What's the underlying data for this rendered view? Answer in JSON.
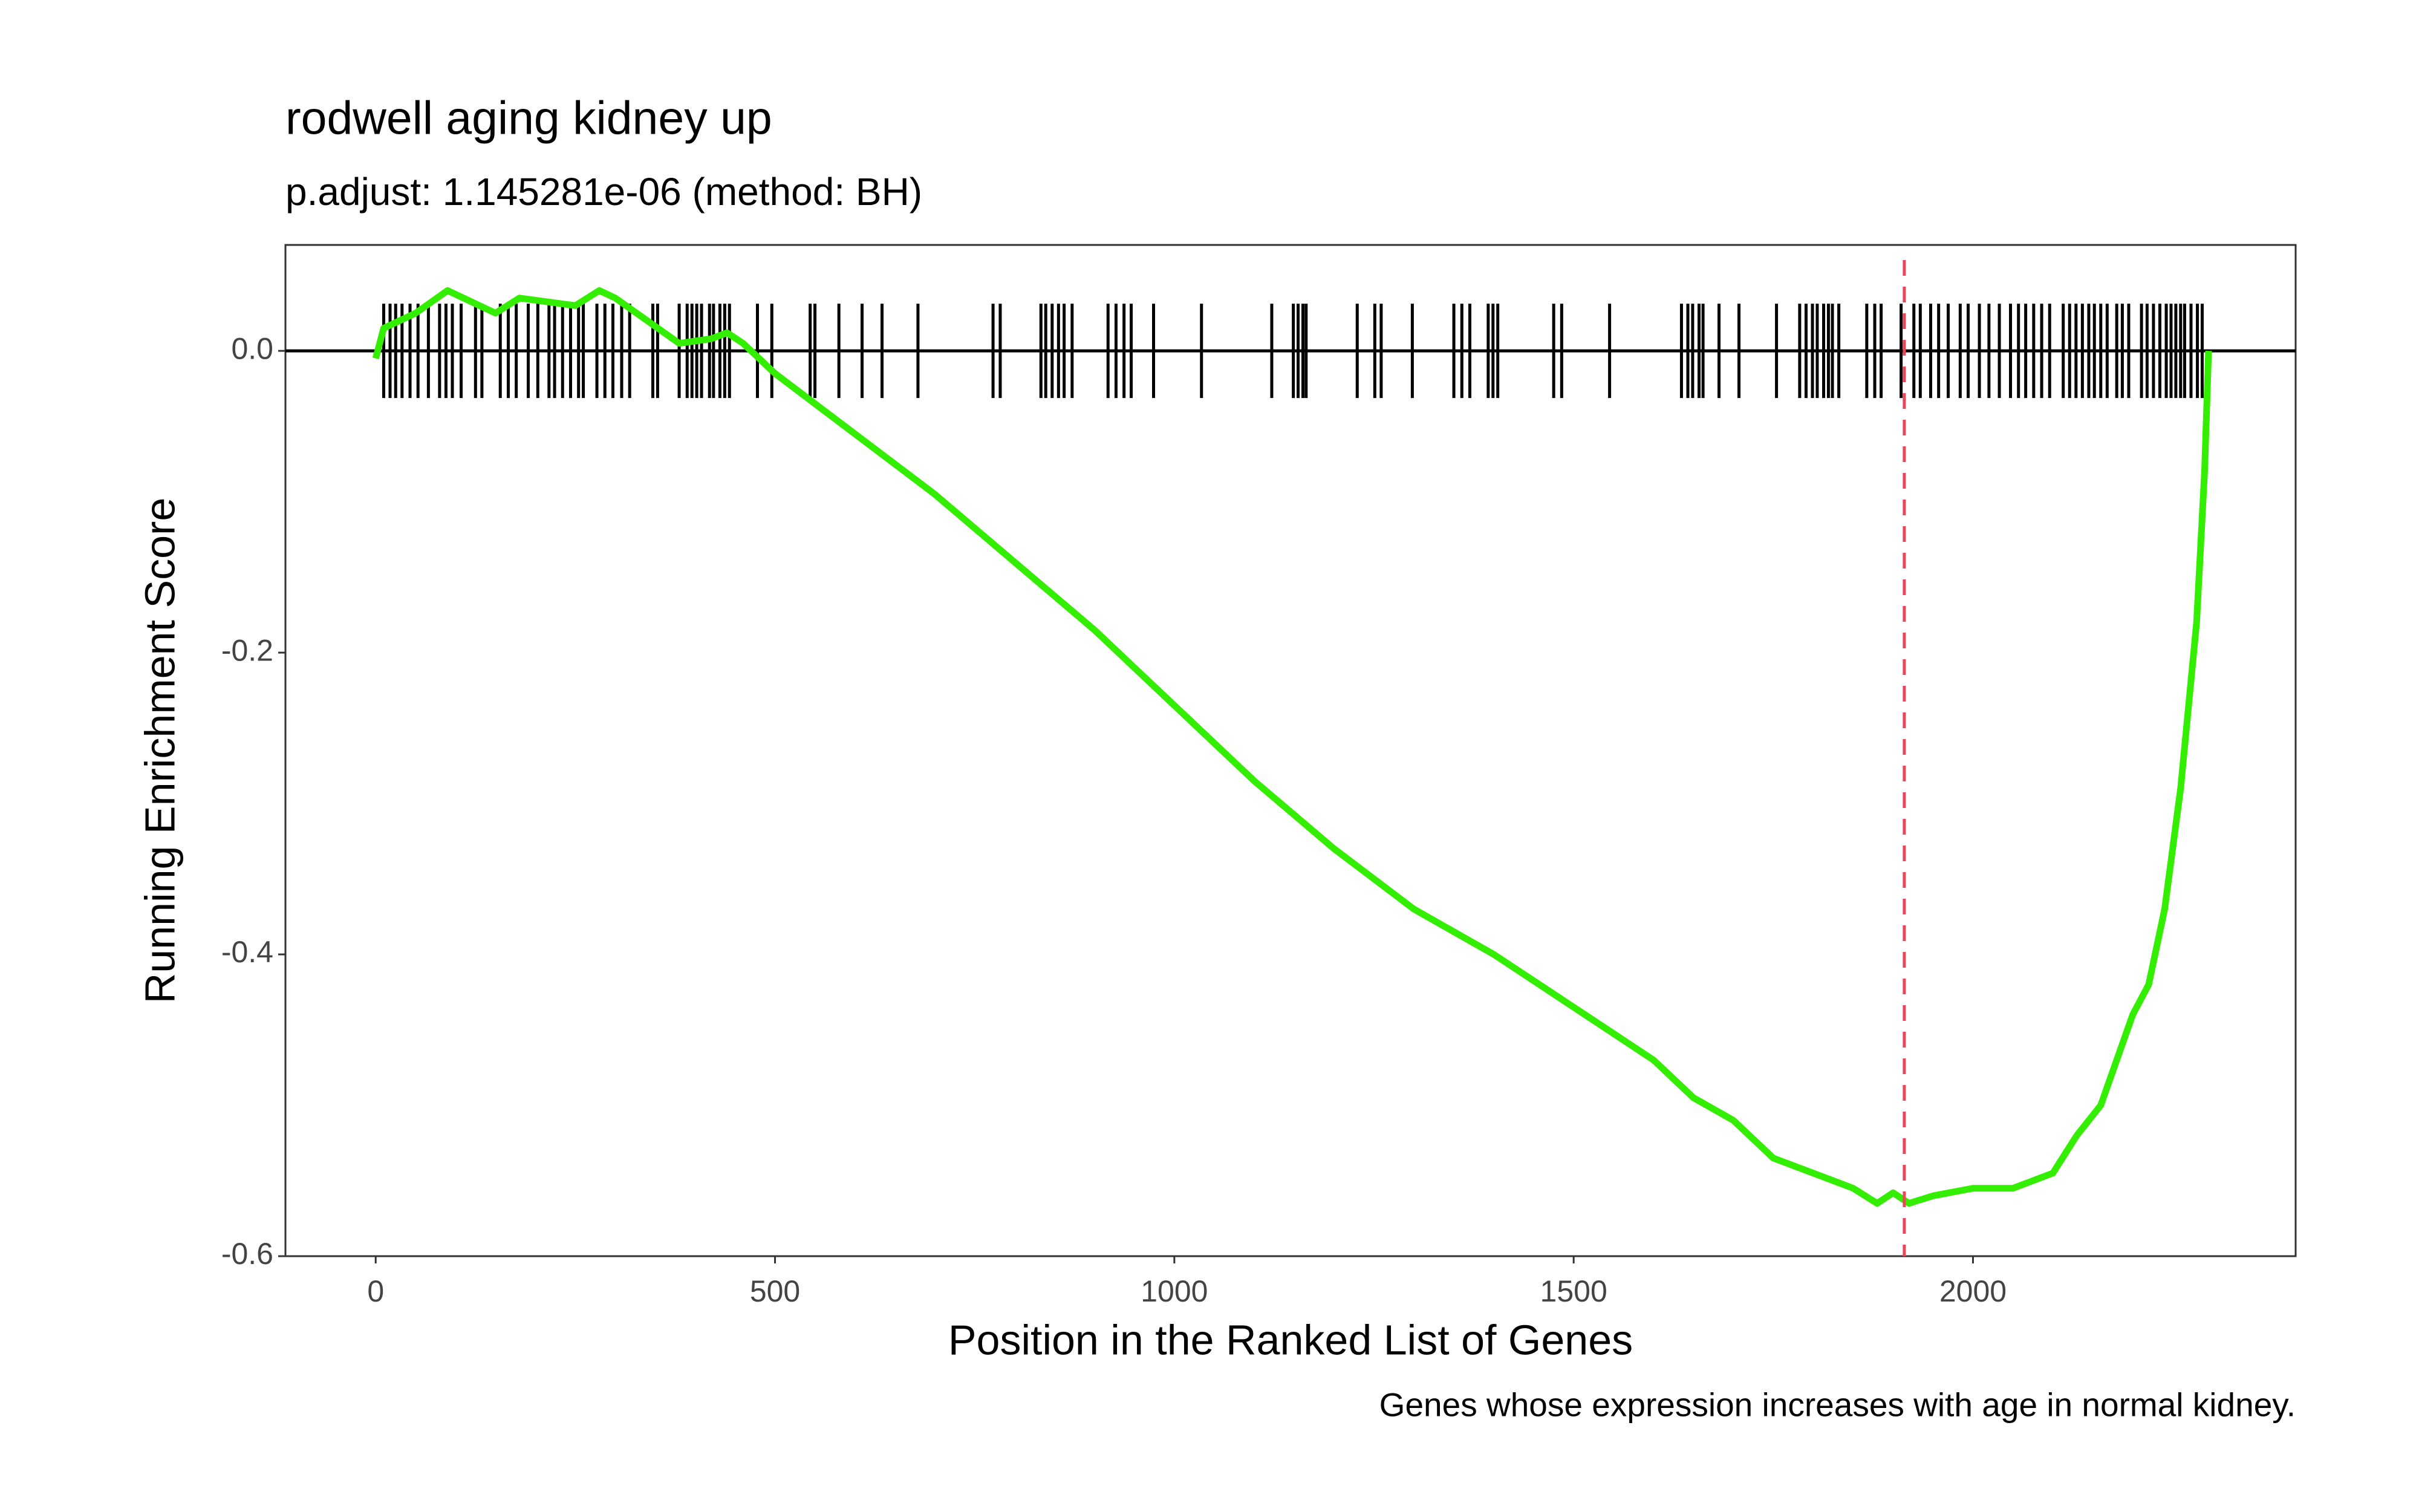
{
  "chart_data": {
    "type": "line",
    "title": "rodwell aging kidney up",
    "subtitle": "p.adjust: 1.145281e-06 (method: BH)",
    "x_label": "Position in the Ranked List of Genes",
    "y_label": "Running Enrichment Score",
    "caption": "Genes whose expression increases with age in normal kidney.",
    "x": [
      0,
      10,
      50,
      90,
      150,
      180,
      250,
      280,
      300,
      380,
      420,
      440,
      460,
      500,
      550,
      600,
      700,
      800,
      900,
      1000,
      1100,
      1200,
      1300,
      1400,
      1500,
      1600,
      1650,
      1700,
      1750,
      1800,
      1850,
      1880,
      1900,
      1920,
      1950,
      2000,
      2050,
      2100,
      2130,
      2160,
      2200,
      2220,
      2240,
      2260,
      2280,
      2290,
      2295
    ],
    "values": [
      -0.005,
      0.015,
      0.025,
      0.04,
      0.025,
      0.035,
      0.03,
      0.04,
      0.035,
      0.005,
      0.008,
      0.012,
      0.005,
      -0.015,
      -0.035,
      -0.055,
      -0.095,
      -0.14,
      -0.185,
      -0.235,
      -0.285,
      -0.33,
      -0.37,
      -0.4,
      -0.435,
      -0.47,
      -0.495,
      -0.51,
      -0.535,
      -0.545,
      -0.555,
      -0.565,
      -0.558,
      -0.565,
      -0.56,
      -0.555,
      -0.555,
      -0.545,
      -0.52,
      -0.5,
      -0.44,
      -0.42,
      -0.37,
      -0.29,
      -0.18,
      -0.08,
      0
    ],
    "color": "#33ee00",
    "hits": [
      10,
      18,
      25,
      33,
      43,
      53,
      66,
      80,
      88,
      96,
      107,
      125,
      133,
      156,
      166,
      176,
      191,
      203,
      217,
      224,
      234,
      244,
      254,
      260,
      277,
      287,
      297,
      308,
      318,
      347,
      353,
      380,
      390,
      396,
      402,
      408,
      418,
      423,
      431,
      437,
      443,
      478,
      496,
      544,
      550,
      580,
      609,
      634,
      679,
      773,
      782,
      833,
      839,
      847,
      855,
      862,
      872,
      917,
      927,
      937,
      946,
      974,
      1034,
      1122,
      1149,
      1155,
      1161,
      1165,
      1229,
      1251,
      1259,
      1298,
      1350,
      1360,
      1370,
      1393,
      1399,
      1405,
      1475,
      1485,
      1545,
      1635,
      1643,
      1649,
      1657,
      1662,
      1682,
      1707,
      1754,
      1783,
      1791,
      1799,
      1805,
      1813,
      1819,
      1824,
      1832,
      1867,
      1877,
      1885,
      1910,
      1926,
      1934,
      1947,
      1957,
      1969,
      1984,
      1994,
      2008,
      2020,
      2033,
      2047,
      2057,
      2066,
      2076,
      2086,
      2096,
      2113,
      2121,
      2129,
      2137,
      2145,
      2152,
      2160,
      2168,
      2180,
      2187,
      2195,
      2211,
      2218,
      2226,
      2234,
      2242,
      2248,
      2254,
      2260,
      2265,
      2273,
      2281,
      2287
    ],
    "vline": 1914,
    "vline_color": "#e8485a",
    "xlim": [
      -113,
      2404
    ],
    "xticks": [
      0,
      500,
      1000,
      1500,
      2000
    ],
    "ylim": [
      -0.6,
      0.0702
    ],
    "yticks": [
      -0.6,
      -0.4,
      -0.2,
      {
        "value": 0,
        "label": "0.0"
      }
    ]
  }
}
